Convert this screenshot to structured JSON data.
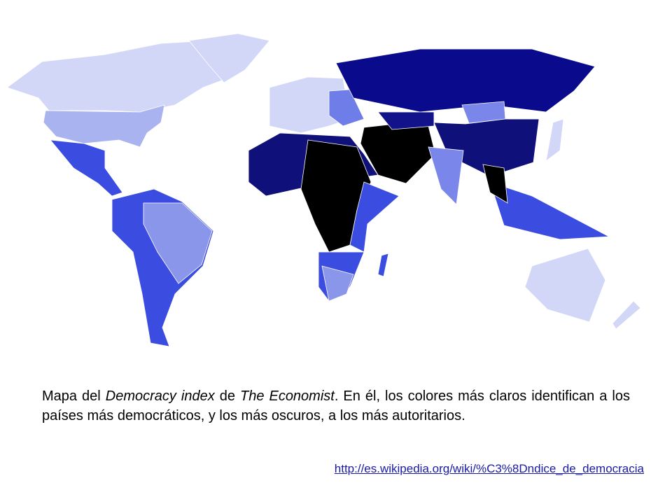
{
  "caption": {
    "parts": [
      "Mapa del ",
      "Democracy index",
      " de ",
      "The Economist",
      ". En él, los colores más claros identifican a los países más democráticos, y los más oscuros, a los más autoritarios."
    ]
  },
  "link": "http://es.wikipedia.org/wiki/%C3%8Dndice_de_democracia"
}
